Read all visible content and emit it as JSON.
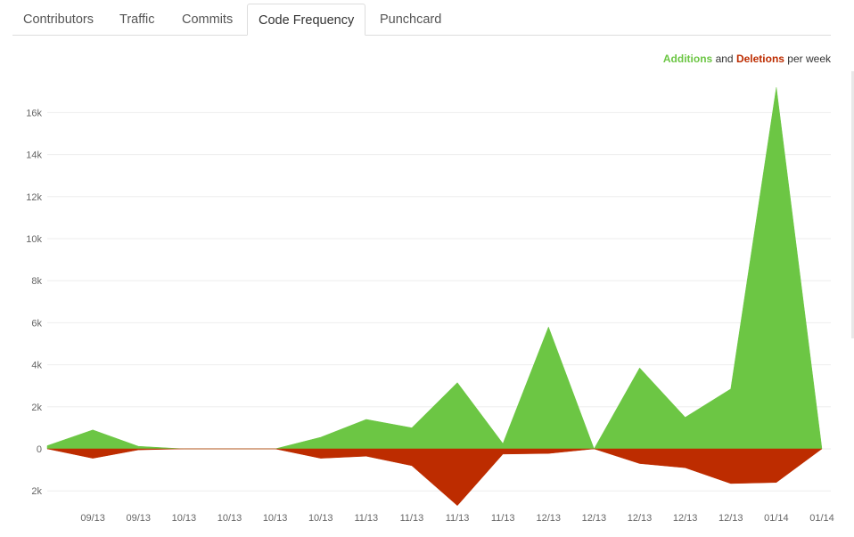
{
  "tabs": [
    {
      "label": "Contributors"
    },
    {
      "label": "Traffic"
    },
    {
      "label": "Commits"
    },
    {
      "label": "Code Frequency"
    },
    {
      "label": "Punchcard"
    }
  ],
  "active_tab": "Code Frequency",
  "legend": {
    "additions": "Additions",
    "and": "and",
    "deletions": "Deletions",
    "per_week": "per week"
  },
  "colors": {
    "additions": "#6cc644",
    "deletions": "#bd2c00",
    "grid": "#eeeeee"
  },
  "chart_data": {
    "type": "area",
    "y_tick_labels": [
      "2k",
      "0",
      "2k",
      "4k",
      "6k",
      "8k",
      "10k",
      "12k",
      "14k",
      "16k"
    ],
    "y_tick_values": [
      -2000,
      0,
      2000,
      4000,
      6000,
      8000,
      10000,
      12000,
      14000,
      16000
    ],
    "ylim": [
      -2500,
      17500
    ],
    "x_tick_labels": [
      "09/13",
      "09/13",
      "10/13",
      "10/13",
      "10/13",
      "10/13",
      "11/13",
      "11/13",
      "11/13",
      "11/13",
      "12/13",
      "12/13",
      "12/13",
      "12/13",
      "12/13",
      "01/14",
      "01/14"
    ],
    "series": [
      {
        "name": "Additions",
        "values": [
          150,
          900,
          120,
          0,
          0,
          0,
          550,
          1400,
          1000,
          3150,
          250,
          5800,
          0,
          3850,
          1500,
          2850,
          17200,
          0
        ]
      },
      {
        "name": "Deletions",
        "values": [
          0,
          -450,
          -50,
          0,
          0,
          0,
          -450,
          -350,
          -800,
          -2700,
          -250,
          -220,
          0,
          -700,
          -900,
          -1650,
          -1600,
          0
        ]
      }
    ]
  }
}
